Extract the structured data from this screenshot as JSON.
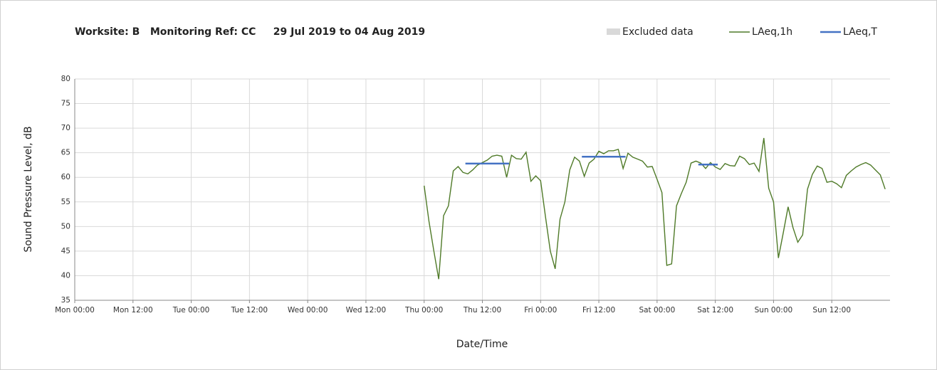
{
  "chart_data": {
    "type": "line",
    "title": "Worksite: B   Monitoring Ref: CC     29 Jul 2019 to 04 Aug 2019",
    "x_label": "Date/Time",
    "y_label": "Sound Pressure Level, dB",
    "xlim": [
      0,
      168
    ],
    "xticks": [
      {
        "value": 0,
        "label": "Mon 00:00"
      },
      {
        "value": 12,
        "label": "Mon 12:00"
      },
      {
        "value": 24,
        "label": "Tue 00:00"
      },
      {
        "value": 36,
        "label": "Tue 12:00"
      },
      {
        "value": 48,
        "label": "Wed 00:00"
      },
      {
        "value": 60,
        "label": "Wed 12:00"
      },
      {
        "value": 72,
        "label": "Thu 00:00"
      },
      {
        "value": 84,
        "label": "Thu 12:00"
      },
      {
        "value": 96,
        "label": "Fri 00:00"
      },
      {
        "value": 108,
        "label": "Fri 12:00"
      },
      {
        "value": 120,
        "label": "Sat 00:00"
      },
      {
        "value": 132,
        "label": "Sat 12:00"
      },
      {
        "value": 144,
        "label": "Sun 00:00"
      },
      {
        "value": 156,
        "label": "Sun 12:00"
      }
    ],
    "ylim": [
      35,
      80
    ],
    "yticks": [
      35,
      40,
      45,
      50,
      55,
      60,
      65,
      70,
      75,
      80
    ],
    "grid": true,
    "series": [
      {
        "name": "Excluded data",
        "color": "#d9d9d9",
        "kind": "area",
        "x": [],
        "values": []
      },
      {
        "name": "LAeq,1h",
        "color": "#4f7a28",
        "kind": "line",
        "x": [
          72,
          73,
          74,
          75,
          76,
          77,
          78,
          79,
          80,
          81,
          82,
          83,
          84,
          85,
          86,
          87,
          88,
          89,
          90,
          91,
          92,
          93,
          94,
          95,
          96,
          97,
          98,
          99,
          100,
          101,
          102,
          103,
          104,
          105,
          106,
          107,
          108,
          109,
          110,
          111,
          112,
          113,
          114,
          115,
          116,
          117,
          118,
          119,
          120,
          121,
          122,
          123,
          124,
          125,
          126,
          127,
          128,
          129,
          130,
          131,
          132,
          133,
          134,
          135,
          136,
          137,
          138,
          139,
          140,
          141,
          142,
          143,
          144,
          145,
          146,
          147,
          148,
          149,
          150,
          151,
          152,
          153,
          154,
          155,
          156,
          157,
          158,
          159,
          160,
          161,
          162,
          163,
          164,
          165,
          166,
          167
        ],
        "values": [
          58.3,
          51,
          45,
          39.3,
          52.2,
          54.2,
          61.3,
          62.2,
          61,
          60.7,
          61.5,
          62.5,
          63,
          63.5,
          64.3,
          64.5,
          64.3,
          60,
          64.5,
          63.8,
          63.7,
          65.1,
          59.2,
          60.3,
          59.3,
          52,
          45,
          41.4,
          51.5,
          55,
          61.5,
          64.1,
          63.3,
          60.2,
          62.9,
          63.7,
          65.3,
          64.8,
          65.4,
          65.4,
          65.7,
          61.8,
          64.9,
          64.1,
          63.7,
          63.3,
          62.1,
          62.2,
          59.6,
          56.9,
          42.1,
          42.4,
          54.2,
          56.7,
          59,
          62.9,
          63.3,
          62.9,
          61.8,
          63,
          62.1,
          61.6,
          62.8,
          62.4,
          62.3,
          64.3,
          63.8,
          62.6,
          62.9,
          61.2,
          68,
          57.8,
          55,
          43.6,
          48.7,
          54,
          49.8,
          46.8,
          48.3,
          57.6,
          60.6,
          62.3,
          61.8,
          59,
          59.2,
          58.7,
          57.9,
          60.4,
          61.3,
          62.1,
          62.6,
          63,
          62.5,
          61.5,
          60.5,
          57.6
        ]
      },
      {
        "name": "LAeq,T",
        "color": "#4472c4",
        "kind": "line",
        "x": [
          80.5,
          89.5,
          97,
          104.5,
          113.5,
          121,
          128.5,
          132.5
        ],
        "values": [
          62.8,
          62.8,
          null,
          64.2,
          64.2,
          null,
          62.6,
          62.6
        ]
      }
    ]
  }
}
